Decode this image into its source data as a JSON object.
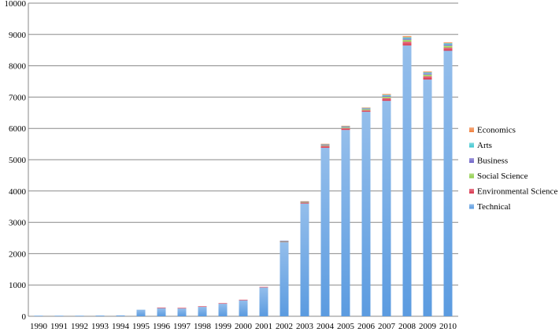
{
  "chart_data": {
    "type": "bar",
    "stacked": true,
    "categories": [
      "1990",
      "1991",
      "1992",
      "1993",
      "1994",
      "1995",
      "1996",
      "1997",
      "1998",
      "1999",
      "2000",
      "2001",
      "2002",
      "2003",
      "2004",
      "2005",
      "2006",
      "2007",
      "2008",
      "2009",
      "2010"
    ],
    "ylim": [
      0,
      10000
    ],
    "yticks": [
      0,
      1000,
      2000,
      3000,
      4000,
      5000,
      6000,
      7000,
      8000,
      9000,
      10000
    ],
    "grid": true,
    "legend_position": "right",
    "series": [
      {
        "name": "Technical",
        "color": "#5b9be0",
        "values": [
          5,
          5,
          5,
          25,
          30,
          210,
          260,
          250,
          300,
          400,
          510,
          920,
          2370,
          3600,
          5380,
          5950,
          6530,
          6880,
          8650,
          7560,
          8480
        ]
      },
      {
        "name": "Environmental Science",
        "color": "#d9344c",
        "values": [
          0,
          0,
          0,
          0,
          0,
          0,
          5,
          5,
          5,
          5,
          5,
          5,
          10,
          30,
          60,
          60,
          50,
          90,
          120,
          110,
          100
        ]
      },
      {
        "name": "Social Science",
        "color": "#8fce4a",
        "values": [
          0,
          0,
          0,
          0,
          0,
          0,
          0,
          0,
          0,
          0,
          0,
          0,
          15,
          10,
          20,
          20,
          30,
          40,
          60,
          50,
          60
        ]
      },
      {
        "name": "Business",
        "color": "#6f64c8",
        "values": [
          0,
          0,
          0,
          0,
          0,
          0,
          0,
          0,
          0,
          0,
          0,
          0,
          5,
          10,
          20,
          20,
          20,
          30,
          40,
          40,
          40
        ]
      },
      {
        "name": "Arts",
        "color": "#3fc6d0",
        "values": [
          0,
          0,
          0,
          0,
          0,
          0,
          0,
          0,
          0,
          0,
          0,
          0,
          0,
          5,
          10,
          15,
          20,
          30,
          40,
          30,
          40
        ]
      },
      {
        "name": "Economics",
        "color": "#f07f3c",
        "values": [
          0,
          0,
          0,
          0,
          0,
          0,
          0,
          0,
          0,
          0,
          0,
          0,
          0,
          5,
          10,
          10,
          20,
          30,
          40,
          30,
          30
        ]
      }
    ]
  }
}
